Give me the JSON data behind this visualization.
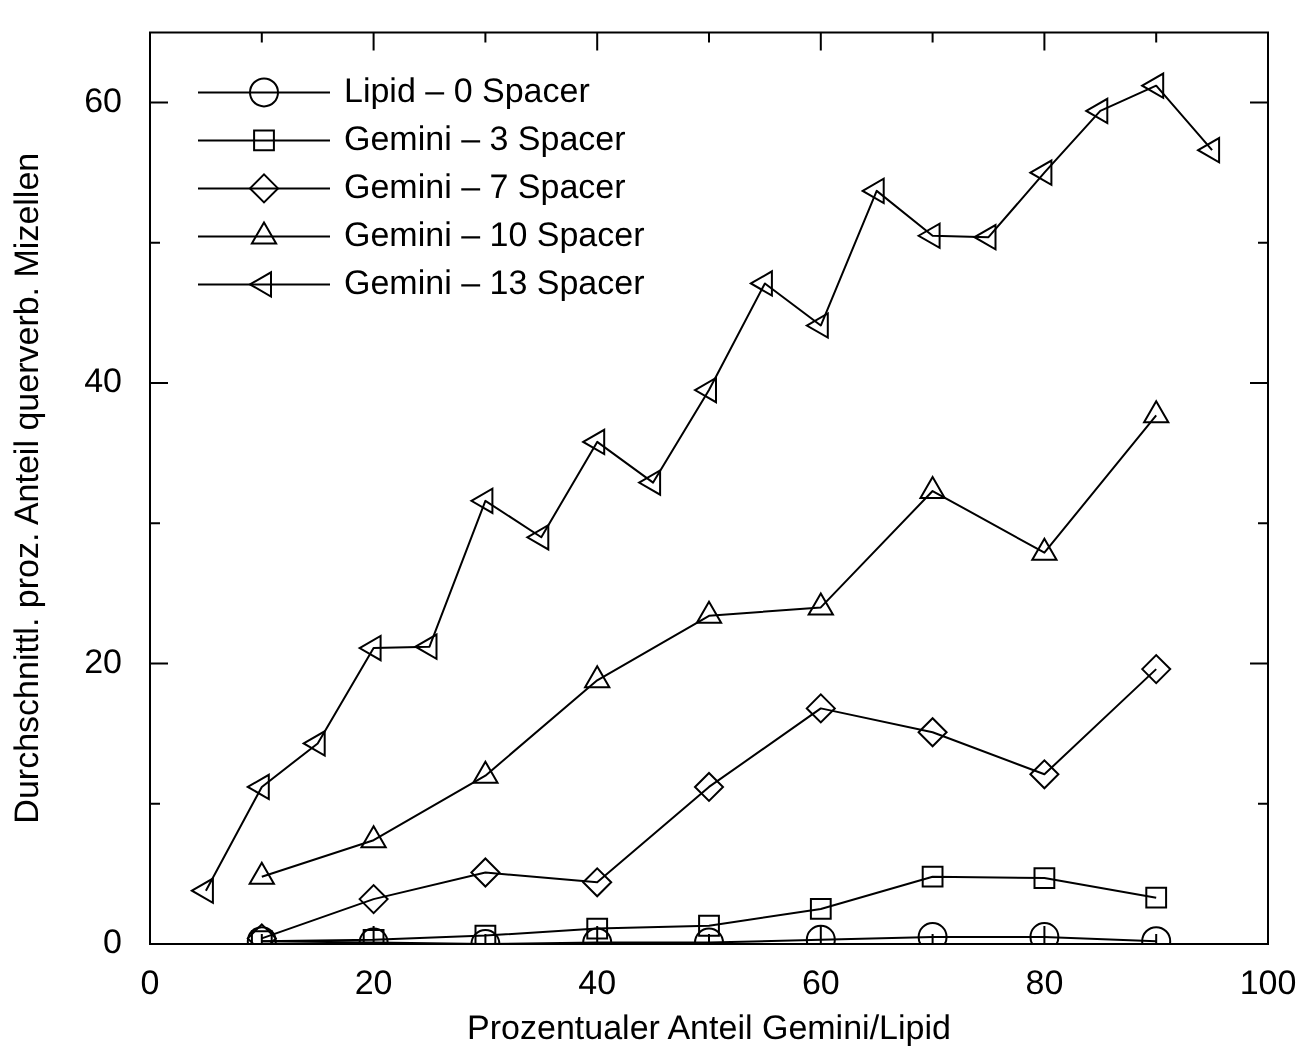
{
  "chart_data": {
    "type": "line",
    "xlabel": "Prozentualer Anteil Gemini/Lipid",
    "ylabel": "Durchschnittl. proz. Anteil querverb. Mizellen",
    "xlim": [
      0,
      100
    ],
    "xticks": [
      0,
      {
        "value": 10,
        "label": null
      },
      20,
      {
        "value": 30,
        "label": null
      },
      40,
      {
        "value": 50,
        "label": null
      },
      60,
      {
        "value": 70,
        "label": null
      },
      80,
      {
        "value": 90,
        "label": null
      },
      100
    ],
    "ylim": [
      0,
      65
    ],
    "yticks": [
      0,
      {
        "value": 10,
        "label": null
      },
      20,
      {
        "value": 30,
        "label": null
      },
      40,
      {
        "value": 50,
        "label": null
      },
      60
    ],
    "grid": false,
    "legend": "top left",
    "line_style": "solid",
    "series": [
      {
        "name": "Lipid – 0 Spacer",
        "color": "#000000",
        "marker": "circle",
        "x": [
          10,
          20,
          30,
          40,
          50,
          60,
          70,
          80,
          90
        ],
        "values": [
          0.2,
          0.1,
          0,
          0.1,
          0.1,
          0.3,
          0.5,
          0.5,
          0.2
        ]
      },
      {
        "name": "Gemini – 3 Spacer",
        "color": "#000000",
        "marker": "square",
        "x": [
          10,
          20,
          30,
          40,
          50,
          60,
          70,
          80,
          90
        ],
        "values": [
          0.2,
          0.3,
          0.6,
          1.1,
          1.3,
          2.5,
          4.8,
          4.7,
          3.3
        ]
      },
      {
        "name": "Gemini – 7 Spacer",
        "color": "#000000",
        "marker": "diamond",
        "x": [
          10,
          20,
          30,
          40,
          50,
          60,
          70,
          80,
          90
        ],
        "values": [
          0.4,
          3.2,
          5.1,
          4.4,
          11.2,
          16.8,
          15.1,
          12.1,
          19.6
        ]
      },
      {
        "name": "Gemini – 10 Spacer",
        "color": "#000000",
        "marker": "triangle",
        "x": [
          10,
          20,
          30,
          40,
          50,
          60,
          70,
          80,
          90
        ],
        "values": [
          4.8,
          7.4,
          12.0,
          18.8,
          23.4,
          24.0,
          32.3,
          27.9,
          37.7
        ]
      },
      {
        "name": "Gemini – 13 Spacer",
        "color": "#000000",
        "marker": "triangle-left",
        "x": [
          5,
          10,
          15,
          20,
          25,
          30,
          35,
          40,
          45,
          50,
          55,
          60,
          65,
          70,
          75,
          80,
          85,
          90,
          95
        ],
        "values": [
          3.8,
          11.2,
          14.3,
          21.1,
          21.2,
          31.6,
          29.0,
          35.8,
          32.9,
          39.5,
          47.1,
          44.1,
          53.7,
          50.5,
          50.4,
          55.0,
          59.4,
          61.2,
          56.6
        ]
      }
    ]
  }
}
